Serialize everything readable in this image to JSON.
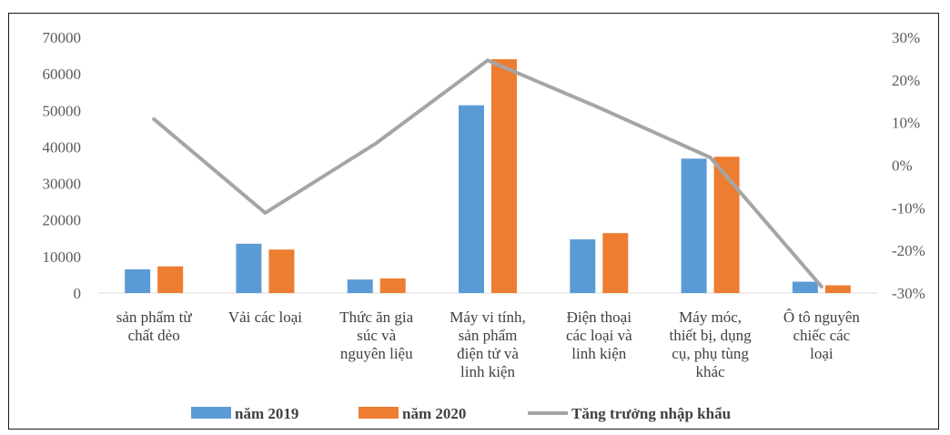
{
  "chart_data": {
    "type": "bar",
    "categories": [
      [
        "sản phẩm từ",
        "chất dẻo"
      ],
      [
        "Vải các loại"
      ],
      [
        "Thức ăn gia",
        "súc và",
        "nguyên liệu"
      ],
      [
        "Máy vi tính,",
        "sản phẩm",
        "điện tử và",
        "linh kiện"
      ],
      [
        "Điện thoại",
        "các loại và",
        "linh kiện"
      ],
      [
        "Máy móc,",
        "thiết bị, dụng",
        "cụ, phụ tùng",
        "khác"
      ],
      [
        "Ô tô nguyên",
        "chiếc các",
        "loại"
      ]
    ],
    "series": [
      {
        "name": "năm 2019",
        "type": "bar",
        "axis": "left",
        "color": "#5b9bd5",
        "values": [
          6500,
          13500,
          3700,
          51400,
          14700,
          36800,
          3100
        ]
      },
      {
        "name": "năm 2020",
        "type": "bar",
        "axis": "left",
        "color": "#ed7d31",
        "values": [
          7300,
          11900,
          4000,
          64000,
          16400,
          37300,
          2100
        ]
      },
      {
        "name": "Tăng trưởng nhập khẩu",
        "type": "line",
        "axis": "right",
        "color": "#a5a5a5",
        "values": [
          10.8,
          -11.2,
          5.2,
          24.6,
          13.5,
          1.8,
          -28.5
        ]
      }
    ],
    "y_left": {
      "ylim": [
        0,
        70000
      ],
      "ticks": [
        "0",
        "10000",
        "20000",
        "30000",
        "40000",
        "50000",
        "60000",
        "70000"
      ]
    },
    "y_right": {
      "ylim": [
        -30,
        30
      ],
      "ticks": [
        "-30%",
        "-20%",
        "-10%",
        "0%",
        "10%",
        "20%",
        "30%"
      ]
    },
    "legend_position": "bottom",
    "grid": false
  }
}
